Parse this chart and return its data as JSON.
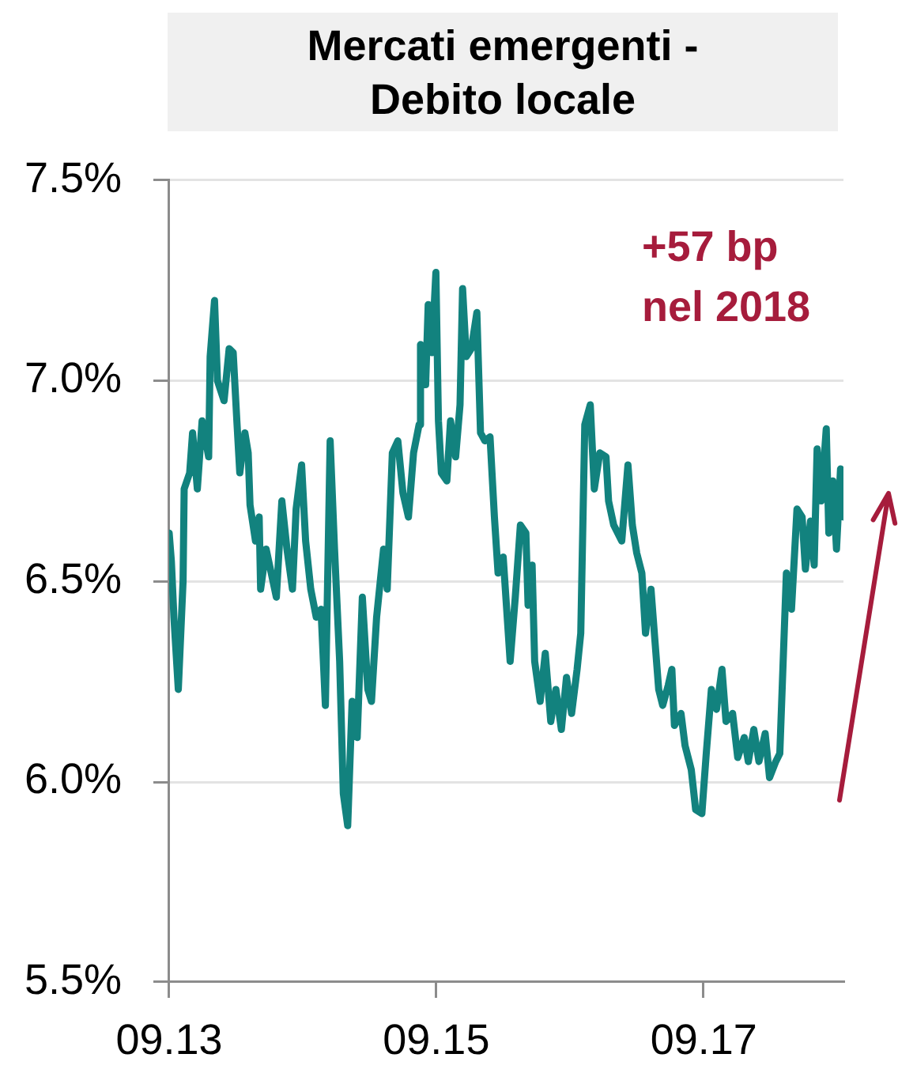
{
  "chart_data": {
    "type": "line",
    "title": "Mercati emergenti - Debito locale",
    "annotations": [
      "+57 bp nel 2018"
    ],
    "x": [
      "2013-09-01",
      "2013-09-07",
      "2013-09-14",
      "2013-09-26",
      "2013-10-09",
      "2013-10-12",
      "2013-10-27",
      "2013-11-04",
      "2013-11-17",
      "2013-11-30",
      "2013-12-18",
      "2013-12-22",
      "2014-01-03",
      "2014-01-11",
      "2014-01-29",
      "2014-02-12",
      "2014-02-23",
      "2014-03-05",
      "2014-03-13",
      "2014-03-27",
      "2014-04-05",
      "2014-04-10",
      "2014-04-25",
      "2014-05-05",
      "2014-05-09",
      "2014-05-24",
      "2014-06-07",
      "2014-06-21",
      "2014-07-06",
      "2014-07-20",
      "2014-08-04",
      "2014-08-14",
      "2014-08-29",
      "2014-09-09",
      "2014-09-23",
      "2014-10-08",
      "2014-10-21",
      "2014-11-02",
      "2014-11-15",
      "2014-11-27",
      "2014-12-11",
      "2014-12-21",
      "2015-01-02",
      "2015-01-14",
      "2015-01-28",
      "2015-02-11",
      "2015-02-26",
      "2015-03-08",
      "2015-03-22",
      "2015-04-10",
      "2015-04-20",
      "2015-05-04",
      "2015-05-19",
      "2015-06-02",
      "2015-06-17",
      "2015-07-01",
      "2015-07-16",
      "2015-07-20",
      "2015-08-03",
      "2015-08-10",
      "2015-08-20",
      "2015-08-31",
      "2015-09-07",
      "2015-09-15",
      "2015-09-30",
      "2015-10-10",
      "2015-10-24",
      "2015-11-05",
      "2015-11-12",
      "2015-11-22",
      "2015-12-06",
      "2015-12-21",
      "2015-12-31",
      "2016-01-12",
      "2016-01-26",
      "2016-02-07",
      "2016-02-17",
      "2016-03-02",
      "2016-03-21",
      "2016-04-04",
      "2016-04-18",
      "2016-05-03",
      "2016-05-09",
      "2016-05-20",
      "2016-05-27",
      "2016-06-11",
      "2016-06-25",
      "2016-07-10",
      "2016-07-24",
      "2016-08-08",
      "2016-08-22",
      "2016-09-05",
      "2016-09-20",
      "2016-09-30",
      "2016-10-11",
      "2016-10-26",
      "2016-11-06",
      "2016-11-21",
      "2016-12-08",
      "2016-12-15",
      "2016-12-29",
      "2017-01-20",
      "2017-02-06",
      "2017-02-18",
      "2017-03-02",
      "2017-03-16",
      "2017-03-26",
      "2017-04-10",
      "2017-04-20",
      "2017-05-01",
      "2017-05-12",
      "2017-05-27",
      "2017-06-06",
      "2017-06-13",
      "2017-07-01",
      "2017-07-12",
      "2017-07-29",
      "2017-08-10",
      "2017-08-27",
      "2017-09-08",
      "2017-09-22",
      "2017-10-06",
      "2017-10-21",
      "2017-11-01",
      "2017-11-19",
      "2017-12-03",
      "2017-12-21",
      "2018-01-01",
      "2018-01-16",
      "2018-01-30",
      "2018-02-16",
      "2018-02-28",
      "2018-03-17",
      "2018-03-28",
      "2018-04-05",
      "2018-04-15",
      "2018-04-29",
      "2018-05-14",
      "2018-05-28",
      "2018-06-06",
      "2018-06-20",
      "2018-06-30",
      "2018-07-08",
      "2018-07-19",
      "2018-08-02",
      "2018-08-09",
      "2018-08-20",
      "2018-08-30",
      "2018-09-10",
      "2018-09-18"
    ],
    "series": [
      {
        "color": "#12827e",
        "values": [
          6.62,
          6.55,
          6.41,
          6.23,
          6.5,
          6.73,
          6.77,
          6.87,
          6.73,
          6.9,
          6.81,
          7.06,
          7.2,
          7.0,
          6.95,
          7.08,
          7.07,
          6.9,
          6.77,
          6.87,
          6.82,
          6.69,
          6.6,
          6.66,
          6.48,
          6.58,
          6.52,
          6.46,
          6.7,
          6.58,
          6.48,
          6.68,
          6.79,
          6.6,
          6.48,
          6.41,
          6.43,
          6.19,
          6.85,
          6.58,
          6.3,
          5.97,
          5.89,
          6.2,
          6.11,
          6.46,
          6.23,
          6.2,
          6.41,
          6.58,
          6.48,
          6.82,
          6.85,
          6.72,
          6.66,
          6.82,
          6.89,
          7.09,
          6.99,
          7.19,
          7.07,
          7.27,
          6.9,
          6.77,
          6.75,
          6.9,
          6.81,
          6.94,
          7.23,
          7.06,
          7.08,
          7.17,
          6.87,
          6.85,
          6.86,
          6.66,
          6.52,
          6.56,
          6.3,
          6.46,
          6.64,
          6.62,
          6.44,
          6.54,
          6.3,
          6.2,
          6.32,
          6.15,
          6.23,
          6.13,
          6.26,
          6.17,
          6.28,
          6.37,
          6.89,
          6.94,
          6.73,
          6.82,
          6.81,
          6.7,
          6.64,
          6.6,
          6.79,
          6.64,
          6.57,
          6.52,
          6.37,
          6.48,
          6.36,
          6.23,
          6.19,
          6.24,
          6.28,
          6.14,
          6.17,
          6.09,
          6.03,
          5.93,
          5.92,
          6.07,
          6.23,
          6.18,
          6.28,
          6.15,
          6.17,
          6.06,
          6.11,
          6.05,
          6.13,
          6.05,
          6.12,
          6.01,
          6.05,
          6.07,
          6.27,
          6.52,
          6.43,
          6.68,
          6.66,
          6.53,
          6.65,
          6.54,
          6.83,
          6.7,
          6.88,
          6.62,
          6.75,
          6.58,
          6.78,
          6.66
        ]
      }
    ],
    "xlim": [
      "2013-09-01",
      "2018-09-18"
    ],
    "xticks": [
      {
        "value": "2013-09-01",
        "label": "09.13"
      },
      {
        "value": "2015-09-01",
        "label": "09.15"
      },
      {
        "value": "2017-09-01",
        "label": "09.17"
      }
    ],
    "ylim": [
      5.5,
      7.5
    ],
    "yticks": [
      {
        "value": 5.5,
        "label": "5.5%"
      },
      {
        "value": 6,
        "label": "6.0%"
      },
      {
        "value": 6.5,
        "label": "6.5%"
      },
      {
        "value": 7,
        "label": "7.0%"
      },
      {
        "value": 7.5,
        "label": "7.5%"
      }
    ],
    "grid": "y"
  }
}
